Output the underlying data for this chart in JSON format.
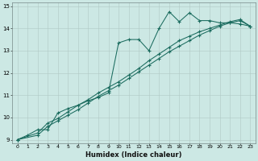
{
  "xlabel": "Humidex (Indice chaleur)",
  "bg_color": "#cce8e4",
  "line_color": "#1a6b5e",
  "grid_color": "#b0c8c4",
  "xlim": [
    -0.5,
    23.5
  ],
  "ylim": [
    8.85,
    15.15
  ],
  "xticks": [
    0,
    1,
    2,
    3,
    4,
    5,
    6,
    7,
    8,
    9,
    10,
    11,
    12,
    13,
    14,
    15,
    16,
    17,
    18,
    19,
    20,
    21,
    22,
    23
  ],
  "yticks": [
    9,
    10,
    11,
    12,
    13,
    14,
    15
  ],
  "line1_x": [
    0,
    1,
    2,
    3,
    4,
    5,
    6,
    7,
    8,
    9,
    10,
    11,
    12,
    13,
    14,
    15,
    16,
    17,
    18,
    19,
    20,
    21,
    22,
    23
  ],
  "line1_y": [
    9.0,
    9.2,
    9.45,
    9.45,
    10.2,
    10.4,
    10.55,
    10.75,
    10.9,
    11.1,
    13.35,
    13.5,
    13.5,
    13.0,
    14.0,
    14.75,
    14.3,
    14.7,
    14.35,
    14.35,
    14.25,
    14.25,
    14.2,
    14.1
  ],
  "line2_x": [
    0,
    2,
    3,
    4,
    5,
    6,
    7,
    8,
    9,
    10,
    11,
    12,
    13,
    14,
    15,
    16,
    17,
    18,
    19,
    20,
    21,
    22,
    23
  ],
  "line2_y": [
    9.0,
    9.3,
    9.75,
    9.95,
    10.25,
    10.55,
    10.8,
    11.1,
    11.35,
    11.6,
    11.9,
    12.2,
    12.55,
    12.85,
    13.15,
    13.45,
    13.65,
    13.85,
    14.0,
    14.15,
    14.3,
    14.4,
    14.1
  ],
  "line3_x": [
    0,
    2,
    3,
    4,
    5,
    6,
    7,
    8,
    9,
    10,
    11,
    12,
    13,
    14,
    15,
    16,
    17,
    18,
    19,
    20,
    21,
    22,
    23
  ],
  "line3_y": [
    9.0,
    9.2,
    9.6,
    9.85,
    10.1,
    10.35,
    10.65,
    10.95,
    11.2,
    11.45,
    11.75,
    12.05,
    12.35,
    12.65,
    12.95,
    13.2,
    13.45,
    13.7,
    13.9,
    14.1,
    14.25,
    14.35,
    14.1
  ]
}
